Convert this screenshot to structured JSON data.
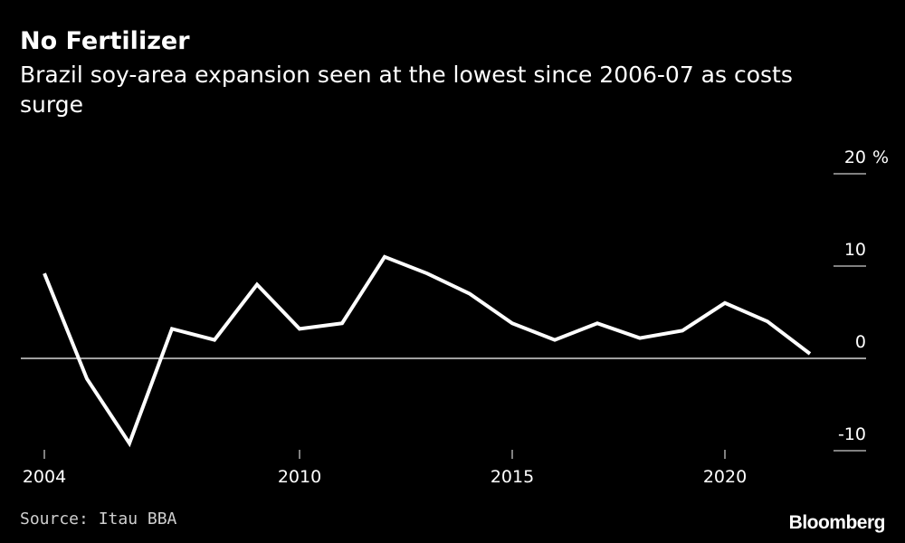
{
  "chart_data": {
    "type": "line",
    "title": "No Fertilizer",
    "subtitle": "Brazil soy-area expansion seen at the lowest since 2006-07 as costs surge",
    "ylabel": "%",
    "xlim": [
      2004,
      2022
    ],
    "ylim": [
      -10,
      20
    ],
    "x_ticks": [
      "2004",
      "2010",
      "2015",
      "2020"
    ],
    "y_ticks": [
      "20",
      "10",
      "0",
      "-10"
    ],
    "grid": false,
    "series": [
      {
        "x": [
          2004,
          2005,
          2006,
          2007,
          2008,
          2009,
          2010,
          2011,
          2012,
          2013,
          2014,
          2015,
          2016,
          2017,
          2018,
          2019,
          2020,
          2021,
          2022
        ],
        "values": [
          9.2,
          -2.2,
          -9.2,
          3.2,
          2.0,
          8.0,
          3.2,
          3.8,
          11.0,
          9.2,
          7.0,
          3.8,
          2.0,
          3.8,
          2.2,
          3.0,
          6.0,
          4.0,
          0.5
        ]
      }
    ],
    "color": "#ffffff"
  },
  "footer": {
    "source": "Source: Itau BBA",
    "brand": "Bloomberg"
  }
}
